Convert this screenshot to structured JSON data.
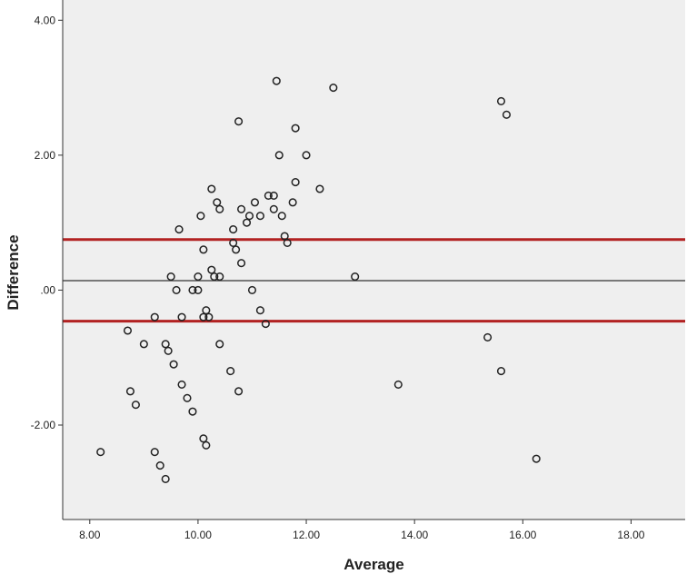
{
  "chart_data": {
    "type": "scatter",
    "title": "",
    "xlabel": "Average",
    "ylabel": "Difference",
    "xlim": [
      7.5,
      19.0
    ],
    "ylim": [
      -3.4,
      4.3
    ],
    "x_ticks": [
      8,
      10,
      12,
      14,
      16,
      18
    ],
    "x_tick_labels": [
      "8.00",
      "10.00",
      "12.00",
      "14.00",
      "16.00",
      "18.00"
    ],
    "y_ticks": [
      -2,
      0,
      2,
      4
    ],
    "y_tick_labels": [
      "-2.00",
      ".00",
      "2.00",
      "4.00"
    ],
    "grid": false,
    "plot_background": "#efefef",
    "marker_color": "#222222",
    "reference_lines": [
      {
        "y": 0.75,
        "color": "#b22222",
        "role": "upper limit"
      },
      {
        "y": 0.14,
        "color": "#333333",
        "role": "mean"
      },
      {
        "y": -0.46,
        "color": "#b22222",
        "role": "lower limit"
      }
    ],
    "points": [
      {
        "x": 8.2,
        "y": -2.4
      },
      {
        "x": 8.7,
        "y": -0.6
      },
      {
        "x": 8.75,
        "y": -1.5
      },
      {
        "x": 8.85,
        "y": -1.7
      },
      {
        "x": 9.0,
        "y": -0.8
      },
      {
        "x": 9.2,
        "y": -0.4
      },
      {
        "x": 9.2,
        "y": -2.4
      },
      {
        "x": 9.3,
        "y": -2.6
      },
      {
        "x": 9.4,
        "y": -2.8
      },
      {
        "x": 9.4,
        "y": -0.8
      },
      {
        "x": 9.45,
        "y": -0.9
      },
      {
        "x": 9.5,
        "y": 0.2
      },
      {
        "x": 9.55,
        "y": -1.1
      },
      {
        "x": 9.6,
        "y": 0.0
      },
      {
        "x": 9.65,
        "y": 0.9
      },
      {
        "x": 9.7,
        "y": -0.4
      },
      {
        "x": 9.7,
        "y": -1.4
      },
      {
        "x": 9.8,
        "y": -1.6
      },
      {
        "x": 9.9,
        "y": 0.0
      },
      {
        "x": 9.9,
        "y": -1.8
      },
      {
        "x": 10.0,
        "y": 0.0
      },
      {
        "x": 10.0,
        "y": 0.2
      },
      {
        "x": 10.05,
        "y": 1.1
      },
      {
        "x": 10.1,
        "y": 0.6
      },
      {
        "x": 10.1,
        "y": -0.4
      },
      {
        "x": 10.1,
        "y": -2.2
      },
      {
        "x": 10.15,
        "y": -0.3
      },
      {
        "x": 10.15,
        "y": -2.3
      },
      {
        "x": 10.2,
        "y": -0.4
      },
      {
        "x": 10.25,
        "y": 0.3
      },
      {
        "x": 10.25,
        "y": 1.5
      },
      {
        "x": 10.3,
        "y": 0.2
      },
      {
        "x": 10.35,
        "y": 1.3
      },
      {
        "x": 10.4,
        "y": 1.2
      },
      {
        "x": 10.4,
        "y": 0.2
      },
      {
        "x": 10.4,
        "y": -0.8
      },
      {
        "x": 10.6,
        "y": -1.2
      },
      {
        "x": 10.65,
        "y": 0.7
      },
      {
        "x": 10.65,
        "y": 0.9
      },
      {
        "x": 10.7,
        "y": 0.6
      },
      {
        "x": 10.75,
        "y": 2.5
      },
      {
        "x": 10.75,
        "y": -1.5
      },
      {
        "x": 10.8,
        "y": 0.4
      },
      {
        "x": 10.8,
        "y": 1.2
      },
      {
        "x": 10.9,
        "y": 1.0
      },
      {
        "x": 10.95,
        "y": 1.1
      },
      {
        "x": 11.0,
        "y": 0.0
      },
      {
        "x": 11.05,
        "y": 1.3
      },
      {
        "x": 11.15,
        "y": 1.1
      },
      {
        "x": 11.15,
        "y": -0.3
      },
      {
        "x": 11.25,
        "y": -0.5
      },
      {
        "x": 11.3,
        "y": 1.4
      },
      {
        "x": 11.4,
        "y": 1.4
      },
      {
        "x": 11.4,
        "y": 1.2
      },
      {
        "x": 11.45,
        "y": 3.1
      },
      {
        "x": 11.5,
        "y": 2.0
      },
      {
        "x": 11.55,
        "y": 1.1
      },
      {
        "x": 11.6,
        "y": 0.8
      },
      {
        "x": 11.65,
        "y": 0.7
      },
      {
        "x": 11.75,
        "y": 1.3
      },
      {
        "x": 11.8,
        "y": 2.4
      },
      {
        "x": 11.8,
        "y": 1.6
      },
      {
        "x": 12.0,
        "y": 2.0
      },
      {
        "x": 12.25,
        "y": 1.5
      },
      {
        "x": 12.5,
        "y": 3.0
      },
      {
        "x": 12.9,
        "y": 0.2
      },
      {
        "x": 13.7,
        "y": -1.4
      },
      {
        "x": 15.35,
        "y": -0.7
      },
      {
        "x": 15.6,
        "y": 2.8
      },
      {
        "x": 15.6,
        "y": -1.2
      },
      {
        "x": 15.7,
        "y": 2.6
      },
      {
        "x": 16.25,
        "y": -2.5
      }
    ]
  }
}
